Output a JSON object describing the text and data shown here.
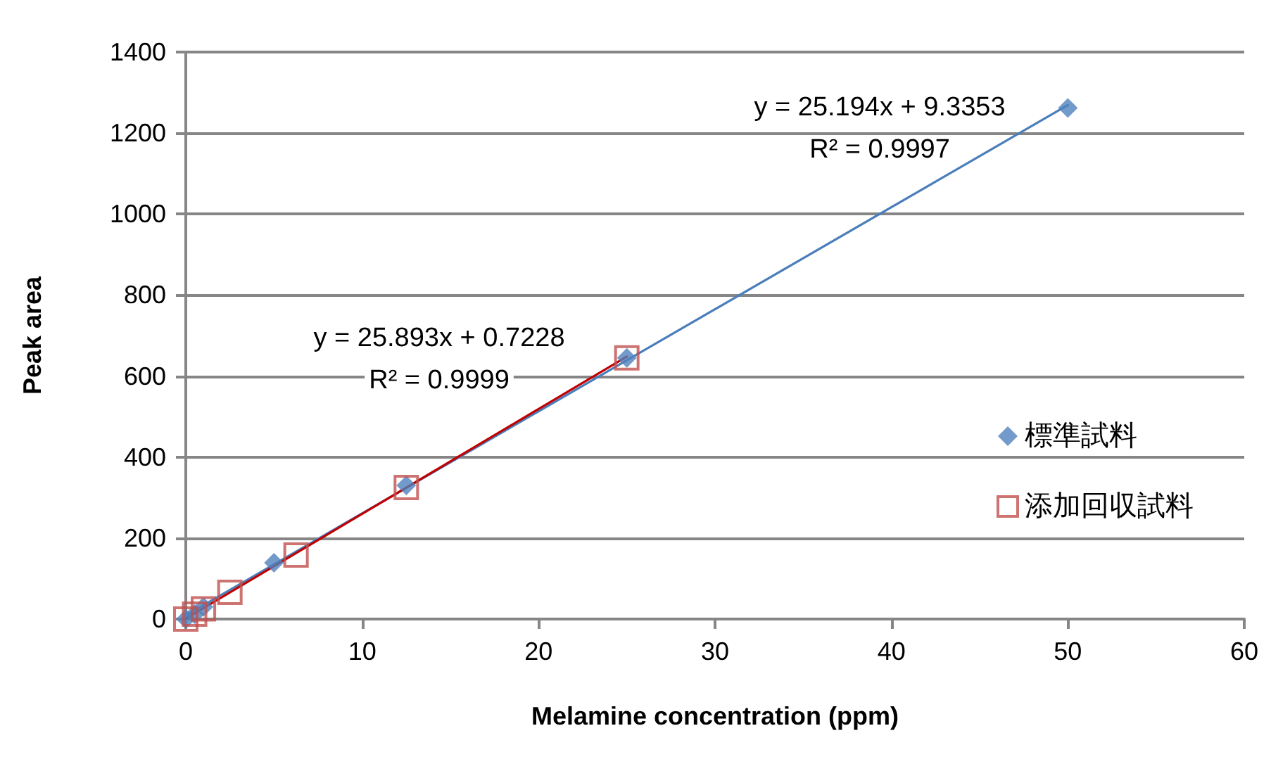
{
  "chart_data": {
    "type": "scatter",
    "xlabel": "Melamine concentration (ppm)",
    "ylabel": "Peak area",
    "xlim": [
      0,
      60
    ],
    "xticks": [
      0,
      10,
      20,
      30,
      40,
      50,
      60
    ],
    "ylim": [
      0,
      1400
    ],
    "yticks": [
      0,
      200,
      400,
      600,
      800,
      1000,
      1200,
      1400
    ],
    "grid": "y",
    "legend": "right",
    "annotations": [
      "y = 25.194x + 9.3353",
      "R² = 0.9997",
      "y = 25.893x + 0.7228",
      "R² = 0.9999"
    ],
    "series": [
      {
        "type": "line",
        "color": "#4a7ebb",
        "x": [
          0,
          50
        ],
        "values": [
          9,
          1269
        ],
        "marker": "none"
      },
      {
        "type": "line",
        "color": "#c00000",
        "x": [
          0,
          25
        ],
        "values": [
          1,
          648
        ],
        "marker": "none"
      },
      {
        "name": "標準試料",
        "color": "#4f81bd",
        "marker": "diamond",
        "x": [
          0,
          0.5,
          1,
          5,
          12.5,
          25,
          50
        ],
        "values": [
          0,
          12,
          30,
          139,
          330,
          645,
          1262
        ]
      },
      {
        "name": "添加回収試料",
        "color": "#c0504d",
        "marker": "square",
        "x": [
          0,
          0.5,
          1,
          2.5,
          6.25,
          12.5,
          25
        ],
        "values": [
          0,
          12,
          25,
          66,
          158,
          325,
          645
        ]
      }
    ]
  }
}
